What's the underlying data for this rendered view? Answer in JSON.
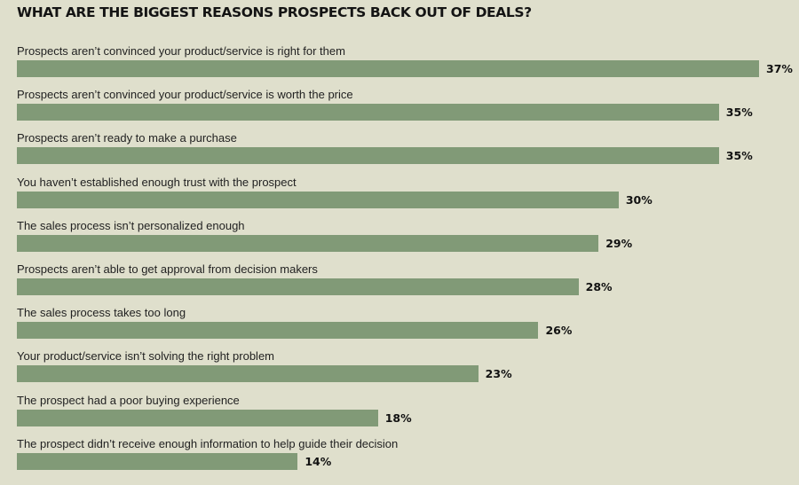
{
  "colors": {
    "background": "#dfdfcc",
    "bar": "#819a77"
  },
  "chart_data": {
    "type": "bar",
    "orientation": "horizontal",
    "title": "WHAT ARE THE BIGGEST REASONS PROSPECTS BACK OUT OF DEALS?",
    "categories": [
      "Prospects aren’t convinced your product/service is right for them",
      "Prospects aren’t convinced your product/service is worth the price",
      "Prospects aren’t ready to make a purchase",
      "You haven’t established enough trust with the prospect",
      "The sales process isn’t personalized enough",
      "Prospects aren’t able to get approval from decision makers",
      "The sales process takes too long",
      "Your product/service isn’t solving the right problem",
      "The prospect had a poor buying experience",
      "The prospect didn’t receive enough information to help guide their decision"
    ],
    "values": [
      37,
      35,
      35,
      30,
      29,
      28,
      26,
      23,
      18,
      14
    ],
    "value_labels": [
      "37%",
      "35%",
      "35%",
      "30%",
      "29%",
      "28%",
      "26%",
      "23%",
      "18%",
      "14%"
    ],
    "unit": "%",
    "xlim": [
      0,
      37
    ],
    "grid": false,
    "legend": "none"
  }
}
